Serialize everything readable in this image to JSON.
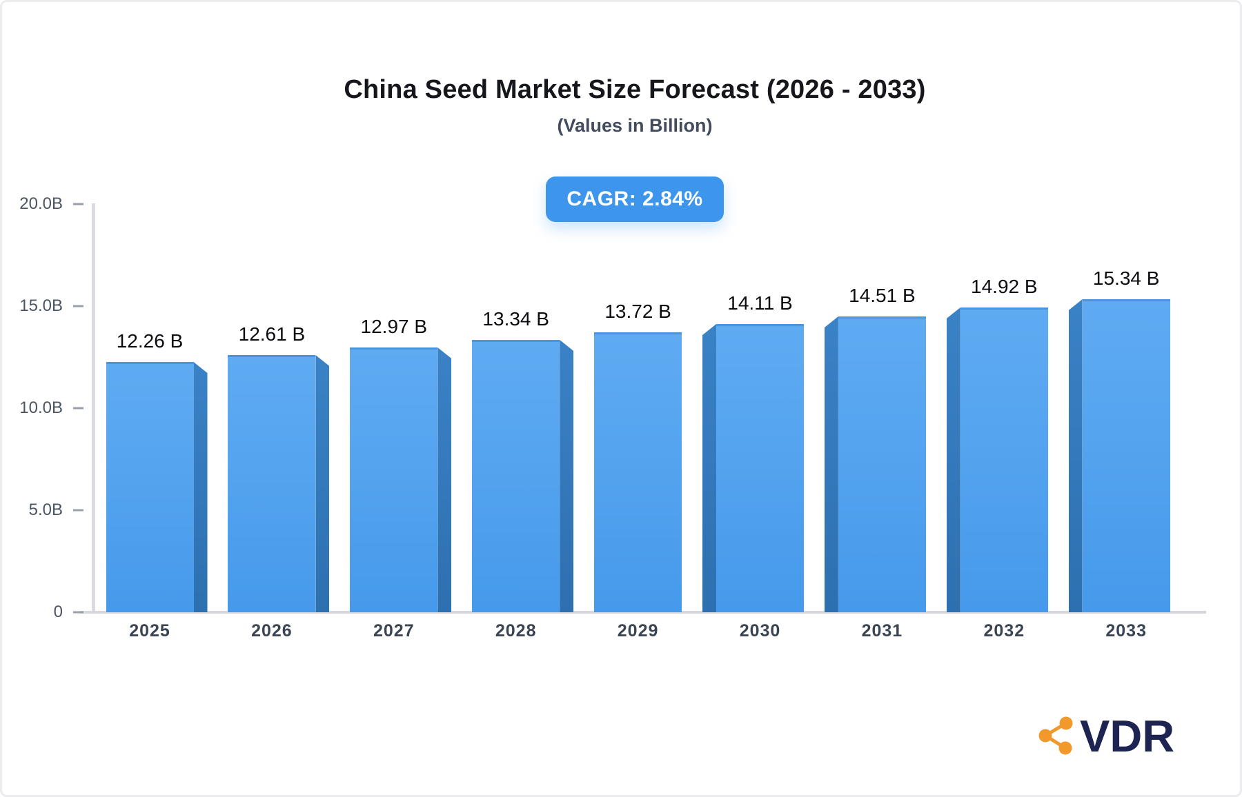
{
  "chart_data": {
    "type": "bar",
    "title": "China Seed Market Size Forecast (2026 - 2033)",
    "subtitle": "(Values in Billion)",
    "cagr_label": "CAGR: 2.84%",
    "categories": [
      "2025",
      "2026",
      "2027",
      "2028",
      "2029",
      "2030",
      "2031",
      "2032",
      "2033"
    ],
    "values": [
      12.26,
      12.61,
      12.97,
      13.34,
      13.72,
      14.11,
      14.51,
      14.92,
      15.34
    ],
    "value_labels": [
      "12.26 B",
      "12.61 B",
      "12.97 B",
      "13.34 B",
      "13.72 B",
      "14.11 B",
      "14.51 B",
      "14.92 B",
      "15.34 B"
    ],
    "xlabel": "",
    "ylabel": "",
    "ylim": [
      0,
      20
    ],
    "yticks": [
      {
        "value": 0,
        "label": "0"
      },
      {
        "value": 5,
        "label": "5.0B"
      },
      {
        "value": 10,
        "label": "10.0B"
      },
      {
        "value": 15,
        "label": "15.0B"
      },
      {
        "value": 20,
        "label": "20.0B"
      }
    ],
    "grid": false,
    "legend": false,
    "colors": {
      "bar_face_top": "#5FABF2",
      "bar_face_bottom": "#469AEB",
      "bar_side": "#2E73B4",
      "badge_bg": "#3E96EC",
      "axis": "#D9DBE0",
      "value_text": "#0B0C0F",
      "tick_text": "#4B5563",
      "year_text": "#3A4452"
    }
  },
  "logo": {
    "text": "VDR",
    "icon": "share-network-icon",
    "icon_color": "#F2992B",
    "text_color": "#1D2452"
  }
}
